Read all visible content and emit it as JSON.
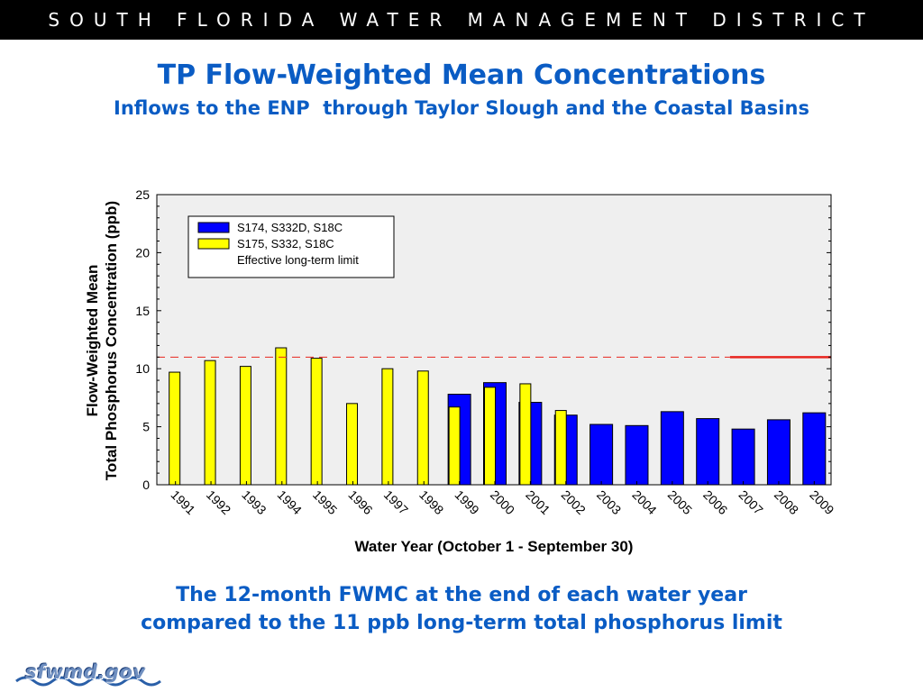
{
  "header": {
    "text": "SOUTH FLORIDA WATER MANAGEMENT DISTRICT"
  },
  "slide": {
    "title": "TP Flow-Weighted Mean Concentrations",
    "subtitle": "Inflows to the ENP  through Taylor Slough and the Coastal Basins",
    "caption_line1": "The 12-month FWMC at the end of each water year",
    "caption_line2": "compared to the 11 ppb long-term total phosphorus limit",
    "logo": "sfwmd.gov"
  },
  "colors": {
    "accent": "#0a5cc4",
    "series_blue": "#0000ff",
    "series_yellow": "#ffff00",
    "limit": "#e8251f",
    "plot_bg": "#efefef"
  },
  "chart_data": {
    "type": "bar",
    "xlabel": "Water Year (October 1 - September 30)",
    "ylabel_lines": [
      "Flow-Weighted Mean",
      "Total Phosphorus Concentration (ppb)"
    ],
    "ylim": [
      0,
      25
    ],
    "yticks": [
      0,
      5,
      10,
      15,
      20,
      25
    ],
    "grid": false,
    "legend_position": "top-left",
    "categories": [
      "1991",
      "1992",
      "1993",
      "1994",
      "1995",
      "1996",
      "1997",
      "1998",
      "1999",
      "2000",
      "2001",
      "2002",
      "2003",
      "2004",
      "2005",
      "2006",
      "2007",
      "2008",
      "2009"
    ],
    "series": [
      {
        "name": "S174, S332D, S18C",
        "color": "#0000ff",
        "values": [
          null,
          null,
          null,
          null,
          null,
          null,
          null,
          null,
          7.8,
          8.8,
          7.1,
          6.0,
          5.2,
          5.1,
          6.3,
          5.7,
          4.8,
          5.6,
          6.2
        ]
      },
      {
        "name": "S175, S332, S18C",
        "color": "#ffff00",
        "values": [
          9.7,
          10.7,
          10.2,
          11.8,
          10.9,
          7.0,
          10.0,
          9.8,
          6.7,
          8.4,
          8.7,
          6.4,
          null,
          null,
          null,
          null,
          null,
          null,
          null
        ]
      }
    ],
    "reference_line": {
      "name": "Effective long-term limit",
      "value": 11,
      "dashed_through": "2006",
      "solid_from": "2007"
    }
  }
}
